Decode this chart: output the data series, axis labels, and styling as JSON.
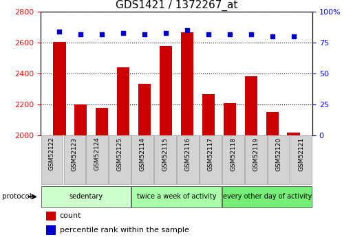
{
  "title": "GDS1421 / 1372267_at",
  "samples": [
    "GSM52122",
    "GSM52123",
    "GSM52124",
    "GSM52125",
    "GSM52114",
    "GSM52115",
    "GSM52116",
    "GSM52117",
    "GSM52118",
    "GSM52119",
    "GSM52120",
    "GSM52121"
  ],
  "counts": [
    2607,
    2200,
    2175,
    2440,
    2335,
    2577,
    2668,
    2265,
    2208,
    2380,
    2150,
    2018
  ],
  "percentiles": [
    84,
    82,
    82,
    83,
    82,
    83,
    85,
    82,
    82,
    82,
    80,
    80
  ],
  "ylim_left": [
    2000,
    2800
  ],
  "ylim_right": [
    0,
    100
  ],
  "yticks_left": [
    2000,
    2200,
    2400,
    2600,
    2800
  ],
  "yticks_right": [
    0,
    25,
    50,
    75,
    100
  ],
  "bar_color": "#cc0000",
  "dot_color": "#0000cc",
  "bar_width": 0.6,
  "groups": [
    {
      "label": "sedentary",
      "start": 0,
      "end": 4,
      "color": "#ccffcc"
    },
    {
      "label": "twice a week of activity",
      "start": 4,
      "end": 8,
      "color": "#aaffaa"
    },
    {
      "label": "every other day of activity",
      "start": 8,
      "end": 12,
      "color": "#77ee77"
    }
  ],
  "protocol_label": "protocol",
  "legend_count_label": "count",
  "legend_percentile_label": "percentile rank within the sample",
  "plot_bg": "#ffffff",
  "sample_bg": "#d3d3d3",
  "title_fontsize": 11
}
